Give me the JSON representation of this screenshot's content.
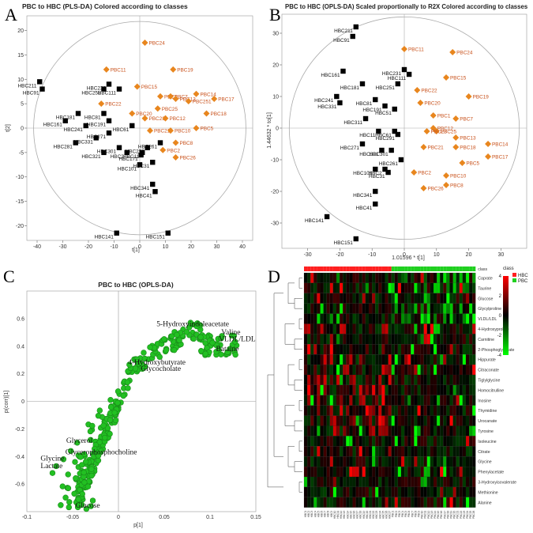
{
  "colors": {
    "hbc": "#000000",
    "pbc": "#e8861e",
    "pbc_text": "#c8501a",
    "green": "#22c022",
    "green_dark": "#1a8a1a",
    "heat_red": "#ff2020",
    "heat_green": "#20d020"
  },
  "panels": {
    "A": {
      "label": "A",
      "title": "PBC to HBC (PLS-DA) Colored according to classes",
      "xlabel": "t[1]",
      "ylabel": "t[2]"
    },
    "B": {
      "label": "B",
      "title": "PBC to HBC (OPLS-DA) Scaled proportionally to R2X Colored according to classes",
      "xlabel": "1.01596 * t[1]",
      "ylabel": "1.44632 * to[1]"
    },
    "C": {
      "label": "C",
      "title": "PBC to HBC (OPLS-DA)",
      "xlabel": "p[1]",
      "ylabel": "p(corr)[1]"
    },
    "D": {
      "label": "D",
      "legend_title": "class",
      "legend_items": [
        "HBC",
        "PBC"
      ]
    }
  },
  "chart_data": [
    {
      "id": "A",
      "type": "scatter",
      "title": "PBC to HBC (PLS-DA) Colored according to classes",
      "xlabel": "t[1]",
      "ylabel": "t[2]",
      "xlim": [
        -44,
        44
      ],
      "ylim": [
        -23,
        23
      ],
      "xticks": [
        -40,
        -30,
        -20,
        -10,
        0,
        10,
        20,
        30,
        40
      ],
      "yticks": [
        20,
        15,
        10,
        5,
        0,
        -5,
        -10,
        -15,
        -20
      ],
      "series": [
        {
          "name": "HBC",
          "points": [
            {
              "label": "HBC211",
              "x": -39,
              "y": 9.5
            },
            {
              "label": "HBC91",
              "x": -38,
              "y": 8
            },
            {
              "label": "HBC231",
              "x": -12,
              "y": 9
            },
            {
              "label": "HBC251",
              "x": -14,
              "y": 8
            },
            {
              "label": "HBC111",
              "x": -8,
              "y": 8
            },
            {
              "label": "HBC181",
              "x": -24,
              "y": 3
            },
            {
              "label": "HBC161",
              "x": -29,
              "y": 1.5
            },
            {
              "label": "HBC81",
              "x": -14,
              "y": 3
            },
            {
              "label": "HBC191",
              "x": -12,
              "y": 1.5
            },
            {
              "label": "HBC241",
              "x": -21,
              "y": 0.5
            },
            {
              "label": "HBC61",
              "x": -3,
              "y": 0.5
            },
            {
              "label": "HBC271",
              "x": -12,
              "y": -1
            },
            {
              "label": "HBC281",
              "x": -25,
              "y": -3
            },
            {
              "label": "HBC331",
              "x": -17,
              "y": -2
            },
            {
              "label": "HBC321",
              "x": -14,
              "y": -5
            },
            {
              "label": "HBC301",
              "x": -8,
              "y": -4
            },
            {
              "label": "HBC261",
              "x": 8,
              "y": -3
            },
            {
              "label": "HBC291",
              "x": 3,
              "y": -4
            },
            {
              "label": "HBC11",
              "x": 1,
              "y": -5
            },
            {
              "label": "HBC171",
              "x": 0.5,
              "y": -5.5
            },
            {
              "label": "HBC2",
              "x": -5,
              "y": -5
            },
            {
              "label": "HBC101",
              "x": 0,
              "y": -7.5
            },
            {
              "label": "HBC31",
              "x": 5,
              "y": -7
            },
            {
              "label": "HBC341",
              "x": 5,
              "y": -11.5
            },
            {
              "label": "HBC41",
              "x": 6,
              "y": -13
            },
            {
              "label": "HBC141",
              "x": -9,
              "y": -21.5
            },
            {
              "label": "HBC151",
              "x": 11,
              "y": -21.5
            }
          ]
        },
        {
          "name": "PBC",
          "points": [
            {
              "label": "PBC24",
              "x": 2,
              "y": 17.5
            },
            {
              "label": "PBC11",
              "x": -13,
              "y": 12
            },
            {
              "label": "PBC19",
              "x": 13,
              "y": 12
            },
            {
              "label": "PBC15",
              "x": -1,
              "y": 8.5
            },
            {
              "label": "PBC14",
              "x": 22,
              "y": 7
            },
            {
              "label": "PBC17",
              "x": 29,
              "y": 6
            },
            {
              "label": "PBC1",
              "x": 8,
              "y": 6.5
            },
            {
              "label": "PBC7",
              "x": 12,
              "y": 6.5
            },
            {
              "label": "PBC13",
              "x": 14,
              "y": 6
            },
            {
              "label": "PBC251",
              "x": 19,
              "y": 5.5
            },
            {
              "label": "PBC22",
              "x": -15,
              "y": 5
            },
            {
              "label": "PBC25",
              "x": 7,
              "y": 4
            },
            {
              "label": "PBC18",
              "x": 26,
              "y": 3
            },
            {
              "label": "PBC20",
              "x": -3,
              "y": 3
            },
            {
              "label": "PBC23",
              "x": 2,
              "y": 2
            },
            {
              "label": "PBC12",
              "x": 10,
              "y": 2
            },
            {
              "label": "PBC21",
              "x": 4,
              "y": -0.5
            },
            {
              "label": "PBC10",
              "x": 12,
              "y": -0.5
            },
            {
              "label": "PBC5",
              "x": 22,
              "y": 0
            },
            {
              "label": "PBC8",
              "x": 14,
              "y": -3
            },
            {
              "label": "PBC2",
              "x": 9,
              "y": -4.5
            },
            {
              "label": "PBC26",
              "x": 14,
              "y": -6
            }
          ]
        }
      ]
    },
    {
      "id": "B",
      "type": "scatter",
      "title": "PBC to HBC (OPLS-DA) Scaled proportionally to R2X Colored according to classes",
      "xlabel": "1.01596 * t[1]",
      "ylabel": "1.44632 * to[1]",
      "xlim": [
        -38,
        38
      ],
      "ylim": [
        -38,
        36
      ],
      "xticks": [
        -30,
        -20,
        -10,
        0,
        10,
        20,
        30
      ],
      "yticks": [
        30,
        20,
        10,
        0,
        -10,
        -20,
        -30
      ],
      "series": [
        {
          "name": "HBC",
          "points": [
            {
              "label": "HBC211",
              "x": -15,
              "y": 32
            },
            {
              "label": "HBC91",
              "x": -16,
              "y": 29
            },
            {
              "label": "HBC161",
              "x": -19,
              "y": 18
            },
            {
              "label": "HBC231",
              "x": 0,
              "y": 18.5
            },
            {
              "label": "HBC111",
              "x": 1.5,
              "y": 17
            },
            {
              "label": "HBC181",
              "x": -13,
              "y": 14
            },
            {
              "label": "HBC251",
              "x": -2,
              "y": 14
            },
            {
              "label": "HBC81",
              "x": -9,
              "y": 9
            },
            {
              "label": "HBC191",
              "x": -6,
              "y": 7
            },
            {
              "label": "HBC51",
              "x": -3,
              "y": 6
            },
            {
              "label": "HBC241",
              "x": -21,
              "y": 10
            },
            {
              "label": "HBC331",
              "x": -20,
              "y": 8
            },
            {
              "label": "HBC311",
              "x": -12,
              "y": 3
            },
            {
              "label": "HBC61",
              "x": -3,
              "y": -1
            },
            {
              "label": "HBC11",
              "x": -8,
              "y": -1
            },
            {
              "label": "HBC291",
              "x": -2,
              "y": -2
            },
            {
              "label": "HBC271",
              "x": -13,
              "y": -5
            },
            {
              "label": "HBC301",
              "x": -4,
              "y": -7
            },
            {
              "label": "HBC321",
              "x": -7,
              "y": -7
            },
            {
              "label": "HBC261",
              "x": -1,
              "y": -10
            },
            {
              "label": "HBC2",
              "x": -6,
              "y": -13
            },
            {
              "label": "HBC101",
              "x": -9,
              "y": -13
            },
            {
              "label": "HBC31",
              "x": -5,
              "y": -14
            },
            {
              "label": "HBC341",
              "x": -9,
              "y": -20
            },
            {
              "label": "HBC41",
              "x": -9,
              "y": -24
            },
            {
              "label": "HBC141",
              "x": -24,
              "y": -28
            },
            {
              "label": "HBC151",
              "x": -15,
              "y": -35
            }
          ]
        },
        {
          "name": "PBC",
          "points": [
            {
              "label": "PBC24",
              "x": 15,
              "y": 24
            },
            {
              "label": "PBC11",
              "x": 0,
              "y": 25
            },
            {
              "label": "PBC15",
              "x": 13,
              "y": 16
            },
            {
              "label": "PBC19",
              "x": 20,
              "y": 10
            },
            {
              "label": "PBC22",
              "x": 4,
              "y": 12
            },
            {
              "label": "PBC20",
              "x": 5,
              "y": 8
            },
            {
              "label": "PBC7",
              "x": 16,
              "y": 3
            },
            {
              "label": "PBC1",
              "x": 9,
              "y": 4
            },
            {
              "label": "PBC12",
              "x": 9,
              "y": 0
            },
            {
              "label": "PBC25",
              "x": 10,
              "y": -1
            },
            {
              "label": "PBC23",
              "x": 7,
              "y": -1
            },
            {
              "label": "PBC13",
              "x": 16,
              "y": -3
            },
            {
              "label": "PBC14",
              "x": 26,
              "y": -5
            },
            {
              "label": "PBC18",
              "x": 16,
              "y": -6
            },
            {
              "label": "PBC21",
              "x": 6,
              "y": -6
            },
            {
              "label": "PBC17",
              "x": 26,
              "y": -9
            },
            {
              "label": "PBC5",
              "x": 18,
              "y": -11
            },
            {
              "label": "PBC10",
              "x": 13,
              "y": -15
            },
            {
              "label": "PBC8",
              "x": 13,
              "y": -18
            },
            {
              "label": "PBC2",
              "x": 3,
              "y": -14
            },
            {
              "label": "PBC26",
              "x": 6,
              "y": -19
            }
          ]
        }
      ]
    },
    {
      "id": "C",
      "type": "scatter",
      "title": "PBC to HBC (OPLS-DA)",
      "xlabel": "p[1]",
      "ylabel": "p(corr)[1]",
      "xlim": [
        -0.1,
        0.15
      ],
      "ylim": [
        -0.8,
        0.8
      ],
      "xticks": [
        -0.1,
        -0.05,
        0,
        0.05,
        0.1,
        0.15
      ],
      "yticks": [
        0.6,
        0.4,
        0.2,
        0,
        -0.2,
        -0.4,
        -0.6
      ],
      "annotations": [
        {
          "text": "5-Hydroxyindoleacetate",
          "x": 0.125,
          "y": 0.545
        },
        {
          "text": "Valine",
          "x": 0.135,
          "y": 0.485
        },
        {
          "text": "VLDL/LDL",
          "x": 0.14,
          "y": 0.435
        },
        {
          "text": "Bataine",
          "x": 0.133,
          "y": 0.365
        },
        {
          "text": "4-Hydroxybutyrate",
          "x": 0.075,
          "y": 0.268
        },
        {
          "text": "Glycocholate",
          "x": 0.07,
          "y": 0.22
        },
        {
          "text": "Glycerol",
          "x": -0.057,
          "y": -0.3
        },
        {
          "text": "Glycerophosphocholine",
          "x": -0.058,
          "y": -0.385
        },
        {
          "text": "Glycine",
          "x": -0.085,
          "y": -0.43
        },
        {
          "text": "Lactate",
          "x": -0.085,
          "y": -0.485
        },
        {
          "text": "Glucose",
          "x": -0.047,
          "y": -0.77
        }
      ]
    },
    {
      "id": "D",
      "type": "heatmap",
      "rows": [
        "Caprate",
        "Taurine",
        "Glucose",
        "Glycylproline",
        "VLDL/LDL",
        "4-Hydroxyproline",
        "Carnitine",
        "2-Phosphoglycerate",
        "Hippurate",
        "Citraconate",
        "Tiglylglycine",
        "Homocitrulline",
        "Inosine",
        "Thymidine",
        "Urocanate",
        "Tyrosine",
        "Isoleucine",
        "Citrate",
        "Glycine",
        "Phenylacetate",
        "3-Hydroxyisovalerate",
        "Methionine",
        "Alanine"
      ],
      "columns_hbc": 27,
      "columns_pbc": 26,
      "scale": [
        4,
        2,
        0,
        -2,
        -4
      ]
    }
  ]
}
